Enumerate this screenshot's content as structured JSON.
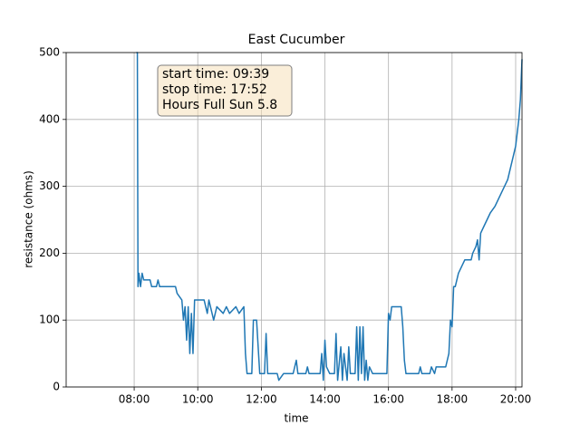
{
  "chart_data": {
    "type": "line",
    "title": "East Cucumber",
    "xlabel": "time",
    "ylabel": "resistance (ohms)",
    "annotation": [
      "start time: 09:39",
      "stop time: 17:52",
      "Hours Full Sun 5.8"
    ],
    "color": "#1f77b4",
    "grid": true,
    "xlim": [
      5.86,
      20.2
    ],
    "ylim": [
      0,
      500
    ],
    "xticks": [
      {
        "value": 8,
        "label": "08:00"
      },
      {
        "value": 10,
        "label": "10:00"
      },
      {
        "value": 12,
        "label": "12:00"
      },
      {
        "value": 14,
        "label": "14:00"
      },
      {
        "value": 16,
        "label": "16:00"
      },
      {
        "value": 18,
        "label": "18:00"
      },
      {
        "value": 20,
        "label": "20:00"
      }
    ],
    "yticks": [
      0,
      100,
      200,
      300,
      400,
      500
    ],
    "x": [
      8.07,
      8.1,
      8.12,
      8.15,
      8.2,
      8.25,
      8.3,
      8.5,
      8.55,
      8.7,
      8.75,
      8.8,
      9.3,
      9.35,
      9.5,
      9.55,
      9.6,
      9.65,
      9.7,
      9.75,
      9.8,
      9.85,
      9.9,
      10.2,
      10.3,
      10.35,
      10.5,
      10.6,
      10.8,
      10.9,
      11.0,
      11.2,
      11.3,
      11.45,
      11.5,
      11.55,
      11.7,
      11.75,
      11.85,
      11.9,
      11.95,
      12.1,
      12.15,
      12.2,
      12.5,
      12.55,
      12.7,
      13.0,
      13.1,
      13.15,
      13.4,
      13.45,
      13.5,
      13.85,
      13.9,
      13.95,
      14.0,
      14.05,
      14.15,
      14.3,
      14.35,
      14.4,
      14.5,
      14.55,
      14.6,
      14.7,
      14.75,
      14.8,
      14.95,
      15.0,
      15.05,
      15.1,
      15.15,
      15.2,
      15.25,
      15.3,
      15.35,
      15.4,
      15.5,
      15.95,
      16.0,
      16.05,
      16.1,
      16.4,
      16.45,
      16.5,
      16.55,
      16.95,
      17.0,
      17.05,
      17.3,
      17.35,
      17.45,
      17.5,
      17.8,
      17.9,
      17.95,
      18.0,
      18.05,
      18.1,
      18.2,
      18.3,
      18.4,
      18.6,
      18.65,
      18.75,
      18.8,
      18.85,
      18.9,
      19.0,
      19.1,
      19.2,
      19.35,
      19.45,
      19.55,
      19.65,
      19.75,
      19.85,
      19.9,
      19.95,
      20.0,
      20.05,
      20.1,
      20.15,
      20.2
    ],
    "values": [
      500,
      500,
      150,
      170,
      150,
      170,
      160,
      160,
      150,
      150,
      160,
      150,
      150,
      140,
      130,
      100,
      120,
      70,
      120,
      50,
      110,
      50,
      130,
      130,
      110,
      130,
      100,
      120,
      110,
      120,
      110,
      120,
      110,
      120,
      50,
      20,
      20,
      100,
      100,
      60,
      20,
      20,
      80,
      20,
      20,
      10,
      20,
      20,
      40,
      20,
      20,
      30,
      20,
      20,
      50,
      10,
      70,
      30,
      20,
      20,
      80,
      10,
      60,
      10,
      50,
      10,
      60,
      20,
      20,
      90,
      10,
      90,
      20,
      90,
      10,
      40,
      10,
      30,
      20,
      20,
      110,
      100,
      120,
      120,
      90,
      40,
      20,
      20,
      30,
      20,
      20,
      30,
      20,
      30,
      30,
      50,
      100,
      90,
      150,
      150,
      170,
      180,
      190,
      190,
      200,
      210,
      220,
      190,
      230,
      240,
      250,
      260,
      270,
      280,
      290,
      300,
      310,
      330,
      340,
      350,
      360,
      380,
      400,
      430,
      490
    ]
  }
}
